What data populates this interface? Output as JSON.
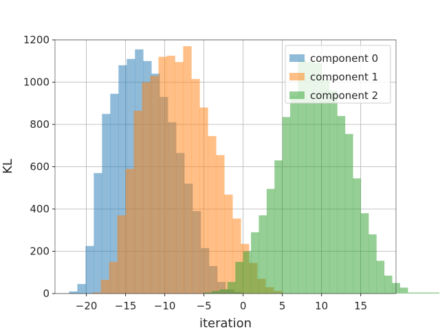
{
  "chart_data": {
    "type": "histogram",
    "title": "",
    "xlabel": "iteration",
    "ylabel": "KL",
    "xlim": [
      -24,
      19.5
    ],
    "ylim": [
      0,
      1200
    ],
    "xticks": [
      -20,
      -15,
      -10,
      -5,
      0,
      5,
      10,
      15
    ],
    "xtick_labels": [
      "−20",
      "−15",
      "−10",
      "−5",
      "0",
      "5",
      "10",
      "15"
    ],
    "yticks": [
      0,
      200,
      400,
      600,
      800,
      1000,
      1200
    ],
    "ytick_labels": [
      "0",
      "200",
      "400",
      "600",
      "800",
      "1000",
      "1200"
    ],
    "grid": true,
    "legend_position": "top-right",
    "series": [
      {
        "name": "component 0",
        "color": "#1f77b4",
        "bin_start": -22.2,
        "bin_width": 1.05,
        "counts": [
          10,
          45,
          225,
          570,
          850,
          945,
          1080,
          1110,
          1155,
          1100,
          1040,
          930,
          810,
          665,
          520,
          390,
          215,
          130,
          55,
          20,
          8
        ]
      },
      {
        "name": "component 1",
        "color": "#ff7f0e",
        "bin_start": -19.2,
        "bin_width": 1.05,
        "counts": [
          5,
          65,
          150,
          370,
          590,
          865,
          1000,
          1030,
          1120,
          1125,
          1095,
          1170,
          1015,
          880,
          745,
          655,
          468,
          355,
          235,
          145,
          70,
          30,
          12
        ]
      },
      {
        "name": "component 2",
        "color": "#2ca02c",
        "bin_start": -5.0,
        "bin_width": 1.0,
        "counts": [
          5,
          12,
          20,
          55,
          150,
          200,
          290,
          370,
          495,
          630,
          835,
          935,
          1105,
          1095,
          1090,
          1015,
          960,
          840,
          755,
          545,
          380,
          280,
          155,
          85,
          50,
          28,
          5,
          5,
          5,
          5
        ]
      }
    ]
  }
}
